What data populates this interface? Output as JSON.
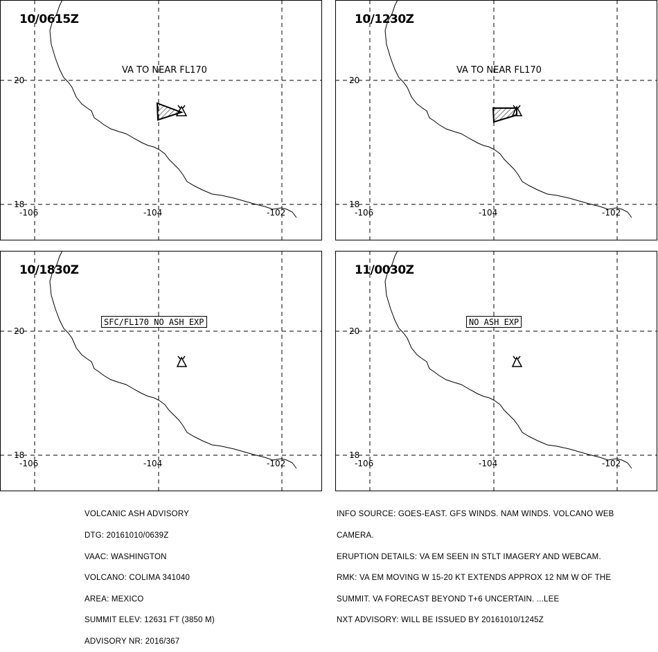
{
  "panels": [
    {
      "time": "10/0615Z",
      "note": "VA TO NEAR FL170",
      "note_boxed": false,
      "ash_polygon": true,
      "ash_shape": "triangle"
    },
    {
      "time": "10/1230Z",
      "note": "VA TO NEAR FL170",
      "note_boxed": false,
      "ash_polygon": true,
      "ash_shape": "trapezoid"
    },
    {
      "time": "10/1830Z",
      "note": "SFC/FL170 NO ASH EXP",
      "note_boxed": true,
      "ash_polygon": false
    },
    {
      "time": "11/0030Z",
      "note": "NO ASH EXP",
      "note_boxed": true,
      "ash_polygon": false
    }
  ],
  "grid": {
    "lat_labels": [
      "20",
      "18"
    ],
    "lon_labels": [
      "-106",
      "-104",
      "-102"
    ]
  },
  "volcano_icon": "volcano-triangle-icon",
  "advisory_left": [
    "VOLCANIC ASH ADVISORY",
    "DTG: 20161010/0639Z",
    "VAAC: WASHINGTON",
    "VOLCANO: COLIMA 341040",
    "AREA: MEXICO",
    "SUMMIT ELEV: 12631 FT (3850 M)",
    "ADVISORY NR: 2016/367"
  ],
  "advisory_right": [
    "INFO SOURCE: GOES-EAST. GFS WINDS. NAM WINDS. VOLCANO WEB",
    "CAMERA.",
    "ERUPTION DETAILS: VA EM SEEN IN STLT IMAGERY AND WEBCAM.",
    "RMK: VA EM MOVING W 15-20 KT EXTENDS APPROX 12 NM W OF THE",
    "SUMMIT. VA FORECAST BEYOND T+6 UNCERTAIN. ...LEE",
    "NXT ADVISORY: WILL BE ISSUED BY 20161010/1245Z"
  ]
}
